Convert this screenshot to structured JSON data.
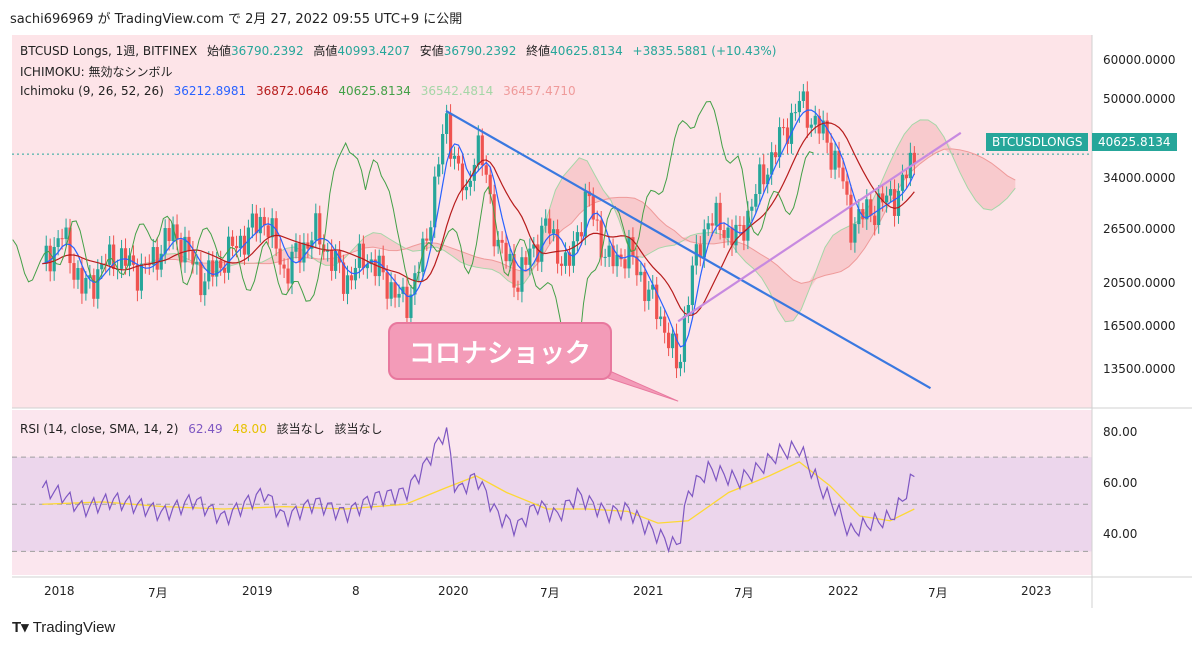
{
  "header": {
    "text": "sachi696969 が TradingView.com で 2月 27, 2022 09:55 UTC+9 に公開"
  },
  "legend": {
    "line1": {
      "symbol": "BTCUSD Longs, 1週, BITFINEX",
      "open_label": "始値",
      "open": "36790.2392",
      "high_label": "高値",
      "high": "40993.4207",
      "low_label": "安値",
      "low": "36790.2392",
      "close_label": "終値",
      "close": "40625.8134",
      "change": "+3835.5881 (+10.43%)"
    },
    "line2": "ICHIMOKU: 無効なシンボル",
    "line3": {
      "name": "Ichimoku (9, 26, 52, 26)",
      "v1": "36212.8981",
      "v2": "36872.0646",
      "v3": "40625.8134",
      "v4": "36542.4814",
      "v5": "36457.4710"
    },
    "rsi": {
      "name": "RSI (14, close, SMA, 14, 2)",
      "v1": "62.49",
      "v2": "48.00",
      "v3": "該当なし",
      "v4": "該当なし"
    }
  },
  "badge": {
    "symbol": "BTCUSDLONGS",
    "value": "40625.8134"
  },
  "callout": "コロナショック",
  "footer": "TradingView",
  "colors": {
    "up": "#26a69a",
    "down": "#ef5350",
    "price_bg": "#fde4e8",
    "rsi_bg": "#ecd6ec",
    "conversion": "#2962ff",
    "base": "#b71c1c",
    "lagging": "#43a047",
    "span_a": "#a5d6a7",
    "span_b": "#ef9a9a",
    "rsi": "#7e57c2",
    "rsi_ma": "#fdd835",
    "trend_down": "#3a78e0",
    "trend_up": "#c78ae0"
  },
  "chart_data": {
    "type": "candlestick",
    "price_axis": {
      "ticks": [
        "60000.0000",
        "50000.0000",
        "34000.0000",
        "26500.0000",
        "20500.0000",
        "16500.0000",
        "13500.0000"
      ],
      "log": true
    },
    "rsi_axis": {
      "ticks": [
        "80.00",
        "60.00",
        "40.00"
      ],
      "bands": [
        70,
        50,
        30
      ]
    },
    "time_axis": [
      "2018",
      "7月",
      "2019",
      "8",
      "2020",
      "7月",
      "2021",
      "7月",
      "2022",
      "7月",
      "2023"
    ],
    "price_path": [
      [
        2018.0,
        24000
      ],
      [
        2018.1,
        27500
      ],
      [
        2018.2,
        21000
      ],
      [
        2018.35,
        25000
      ],
      [
        2018.5,
        23000
      ],
      [
        2018.65,
        28000
      ],
      [
        2018.8,
        22000
      ],
      [
        2018.95,
        26000
      ],
      [
        2019.1,
        30000
      ],
      [
        2019.2,
        23000
      ],
      [
        2019.35,
        28000
      ],
      [
        2019.5,
        22000
      ],
      [
        2019.6,
        25000
      ],
      [
        2019.8,
        19500
      ],
      [
        2019.9,
        26000
      ],
      [
        2020.0,
        47000
      ],
      [
        2020.1,
        32000
      ],
      [
        2020.15,
        44000
      ],
      [
        2020.25,
        27000
      ],
      [
        2020.35,
        22000
      ],
      [
        2020.5,
        29000
      ],
      [
        2020.6,
        23000
      ],
      [
        2020.7,
        33000
      ],
      [
        2020.8,
        24000
      ],
      [
        2020.9,
        25500
      ],
      [
        2021.0,
        21000
      ],
      [
        2021.1,
        17000
      ],
      [
        2021.15,
        14000
      ],
      [
        2021.2,
        21000
      ],
      [
        2021.3,
        30000
      ],
      [
        2021.45,
        27000
      ],
      [
        2021.55,
        35000
      ],
      [
        2021.65,
        43000
      ],
      [
        2021.75,
        52000
      ],
      [
        2021.85,
        46000
      ],
      [
        2021.95,
        38000
      ],
      [
        2022.0,
        29000
      ],
      [
        2022.1,
        31000
      ],
      [
        2022.2,
        33000
      ],
      [
        2022.25,
        34000
      ],
      [
        2022.32,
        40625
      ]
    ],
    "rsi_path": [
      [
        2018.0,
        57
      ],
      [
        2018.1,
        54
      ],
      [
        2018.2,
        48
      ],
      [
        2018.35,
        52
      ],
      [
        2018.5,
        49
      ],
      [
        2018.6,
        46
      ],
      [
        2018.75,
        52
      ],
      [
        2018.9,
        44
      ],
      [
        2019.0,
        50
      ],
      [
        2019.1,
        55
      ],
      [
        2019.2,
        44
      ],
      [
        2019.35,
        51
      ],
      [
        2019.5,
        46
      ],
      [
        2019.65,
        53
      ],
      [
        2019.8,
        55
      ],
      [
        2019.9,
        67
      ],
      [
        2020.0,
        82
      ],
      [
        2020.05,
        55
      ],
      [
        2020.15,
        62
      ],
      [
        2020.25,
        46
      ],
      [
        2020.35,
        40
      ],
      [
        2020.45,
        50
      ],
      [
        2020.55,
        45
      ],
      [
        2020.65,
        54
      ],
      [
        2020.8,
        46
      ],
      [
        2020.9,
        48
      ],
      [
        2021.0,
        40
      ],
      [
        2021.1,
        34
      ],
      [
        2021.15,
        32
      ],
      [
        2021.2,
        55
      ],
      [
        2021.3,
        65
      ],
      [
        2021.45,
        60
      ],
      [
        2021.55,
        65
      ],
      [
        2021.65,
        72
      ],
      [
        2021.75,
        74
      ],
      [
        2021.85,
        58
      ],
      [
        2021.95,
        46
      ],
      [
        2022.0,
        38
      ],
      [
        2022.1,
        42
      ],
      [
        2022.2,
        44
      ],
      [
        2022.25,
        50
      ],
      [
        2022.32,
        62.49
      ]
    ],
    "rsi_ma_path": [
      [
        2018.0,
        50
      ],
      [
        2018.3,
        51
      ],
      [
        2018.6,
        49
      ],
      [
        2018.9,
        48
      ],
      [
        2019.2,
        49
      ],
      [
        2019.5,
        48
      ],
      [
        2019.8,
        50
      ],
      [
        2020.0,
        57
      ],
      [
        2020.15,
        62
      ],
      [
        2020.3,
        55
      ],
      [
        2020.5,
        48
      ],
      [
        2020.7,
        48
      ],
      [
        2020.9,
        47
      ],
      [
        2021.05,
        42
      ],
      [
        2021.2,
        43
      ],
      [
        2021.4,
        55
      ],
      [
        2021.6,
        62
      ],
      [
        2021.75,
        68
      ],
      [
        2021.9,
        58
      ],
      [
        2022.05,
        45
      ],
      [
        2022.2,
        43
      ],
      [
        2022.32,
        48
      ]
    ],
    "trendlines": [
      {
        "name": "",
        "from": [
          2020.0,
          50000
        ],
        "to": [
          2022.4,
          13200
        ]
      },
      {
        "name": "",
        "from": [
          2021.15,
          18200
        ],
        "to": [
          2022.55,
          45000
        ]
      }
    ],
    "ylim": [
      12000,
      72000
    ],
    "xlim": [
      2017.85,
      2023.2
    ]
  }
}
